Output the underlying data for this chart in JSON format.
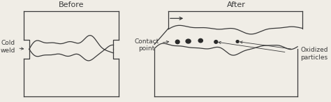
{
  "bg_color": "#f0ede6",
  "line_color": "#3a3a3a",
  "dark_fill": "#2a2a2a",
  "title_before": "Before",
  "title_after": "After",
  "label_cold_weld": "Cold\nweld",
  "label_contact_point": "Contact\npoint",
  "label_oxidized": "Oxidized\nparticles",
  "font_size_title": 8,
  "font_size_label": 6.5
}
